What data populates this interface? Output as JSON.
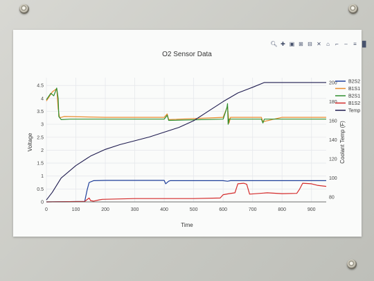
{
  "modebar": {
    "icons": [
      "zoom-icon",
      "pan-icon",
      "box-select-icon",
      "lasso-select-icon",
      "zoom-in-icon",
      "zoom-out-icon",
      "autoscale-icon",
      "reset-axes-icon",
      "spike-lines-icon",
      "hover-closest-icon",
      "hover-compare-icon",
      "plotly-logo-icon"
    ]
  },
  "chart_data": {
    "type": "line",
    "title": "O2 Sensor Data",
    "xlabel": "Time",
    "ylabel": "Voltage",
    "y2label": "Coolant Temp (F)",
    "xlim": [
      0,
      950
    ],
    "ylim": [
      0,
      4.8
    ],
    "y2lim": [
      75,
      205
    ],
    "x_ticks": [
      "0",
      "100",
      "200",
      "300",
      "400",
      "500",
      "600",
      "700",
      "800",
      "900"
    ],
    "y_ticks": [
      "0",
      "0.5",
      "1",
      "1.5",
      "2",
      "2.5",
      "3",
      "3.5",
      "4",
      "4.5"
    ],
    "y2_ticks": [
      "80",
      "100",
      "120",
      "140",
      "160",
      "180",
      "200"
    ],
    "grid": true,
    "legend_position": "right",
    "colors": {
      "B2S2": "#1f3f9a",
      "B1S1": "#e88a2a",
      "B2S1": "#2f8f2f",
      "B1S2": "#d42a2a",
      "Temp": "#1e1b4f"
    },
    "series": [
      {
        "name": "B2S2",
        "axis": "y",
        "x": [
          0,
          130,
          138,
          145,
          160,
          200,
          400,
          405,
          415,
          420,
          500,
          600,
          615,
          625,
          700,
          950
        ],
        "values": [
          0.0,
          0.02,
          0.45,
          0.75,
          0.82,
          0.83,
          0.83,
          0.7,
          0.8,
          0.82,
          0.82,
          0.82,
          0.8,
          0.82,
          0.82,
          0.82
        ]
      },
      {
        "name": "B1S1",
        "axis": "y",
        "x": [
          0,
          20,
          35,
          40,
          45,
          60,
          200,
          400,
          410,
          415,
          600,
          615,
          620,
          625,
          700,
          730,
          735,
          800,
          950
        ],
        "values": [
          3.9,
          4.25,
          4.38,
          3.6,
          3.25,
          3.3,
          3.27,
          3.27,
          3.4,
          3.18,
          3.27,
          3.7,
          3.05,
          3.27,
          3.27,
          3.27,
          3.1,
          3.27,
          3.27
        ]
      },
      {
        "name": "B2S1",
        "axis": "y",
        "x": [
          0,
          15,
          25,
          35,
          40,
          42,
          50,
          80,
          200,
          400,
          410,
          415,
          600,
          613,
          615,
          617,
          620,
          700,
          730,
          735,
          740,
          950
        ],
        "values": [
          3.95,
          4.2,
          4.1,
          4.4,
          4.0,
          3.3,
          3.18,
          3.2,
          3.2,
          3.2,
          3.35,
          3.15,
          3.2,
          3.65,
          3.8,
          3.0,
          3.2,
          3.2,
          3.2,
          3.05,
          3.2,
          3.2
        ]
      },
      {
        "name": "B1S2",
        "axis": "y",
        "x": [
          0,
          130,
          145,
          150,
          160,
          180,
          190,
          300,
          400,
          500,
          590,
          600,
          620,
          640,
          650,
          670,
          680,
          690,
          750,
          800,
          850,
          860,
          870,
          900,
          920,
          950
        ],
        "values": [
          0.0,
          0.02,
          0.15,
          0.05,
          0.03,
          0.08,
          0.1,
          0.13,
          0.13,
          0.13,
          0.15,
          0.28,
          0.32,
          0.35,
          0.7,
          0.72,
          0.68,
          0.3,
          0.35,
          0.32,
          0.33,
          0.5,
          0.72,
          0.7,
          0.64,
          0.6
        ]
      },
      {
        "name": "Temp",
        "axis": "y2",
        "x": [
          0,
          20,
          50,
          100,
          150,
          200,
          250,
          300,
          350,
          400,
          450,
          500,
          550,
          600,
          650,
          700,
          740,
          750,
          800,
          850,
          900,
          950
        ],
        "values": [
          77,
          85,
          100,
          113,
          123,
          130,
          135,
          139,
          143,
          148,
          153,
          160,
          170,
          180,
          189,
          195,
          200,
          200,
          200,
          200,
          200,
          200
        ]
      }
    ]
  }
}
